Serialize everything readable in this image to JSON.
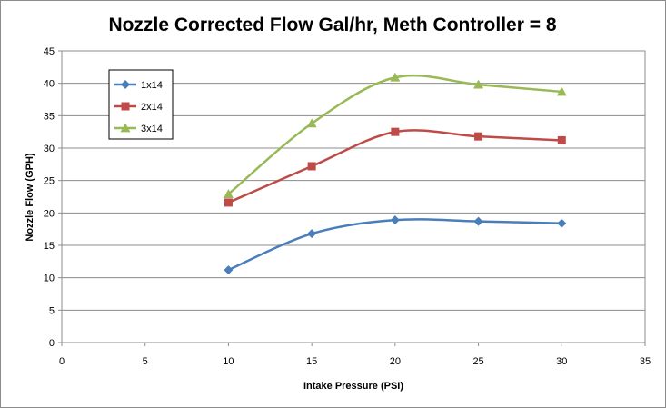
{
  "chart_data": {
    "type": "line",
    "title": "Nozzle Corrected Flow Gal/hr, Meth Controller = 8",
    "xlabel": "Intake Pressure (PSI)",
    "ylabel": "Nozzle Flow (GPH)",
    "xlim": [
      0,
      35
    ],
    "ylim": [
      0,
      45
    ],
    "x_ticks": [
      "0",
      "5",
      "10",
      "15",
      "20",
      "25",
      "30",
      "35"
    ],
    "y_ticks": [
      "0",
      "5",
      "10",
      "15",
      "20",
      "25",
      "30",
      "35",
      "40",
      "45"
    ],
    "grid": "horizontal",
    "legend_position": "top-left",
    "smoothed": true,
    "series": [
      {
        "name": "1x14",
        "color": "#4a7ebb",
        "marker": "diamond",
        "x": [
          10,
          15,
          20,
          25,
          30
        ],
        "y": [
          11.2,
          16.8,
          18.9,
          18.7,
          18.4
        ]
      },
      {
        "name": "2x14",
        "color": "#be4b48",
        "marker": "square",
        "x": [
          10,
          15,
          20,
          25,
          30
        ],
        "y": [
          21.6,
          27.2,
          32.5,
          31.8,
          31.2
        ]
      },
      {
        "name": "3x14",
        "color": "#98b954",
        "marker": "triangle",
        "x": [
          10,
          15,
          20,
          25,
          30
        ],
        "y": [
          22.9,
          33.8,
          40.9,
          39.8,
          38.7
        ]
      }
    ]
  }
}
